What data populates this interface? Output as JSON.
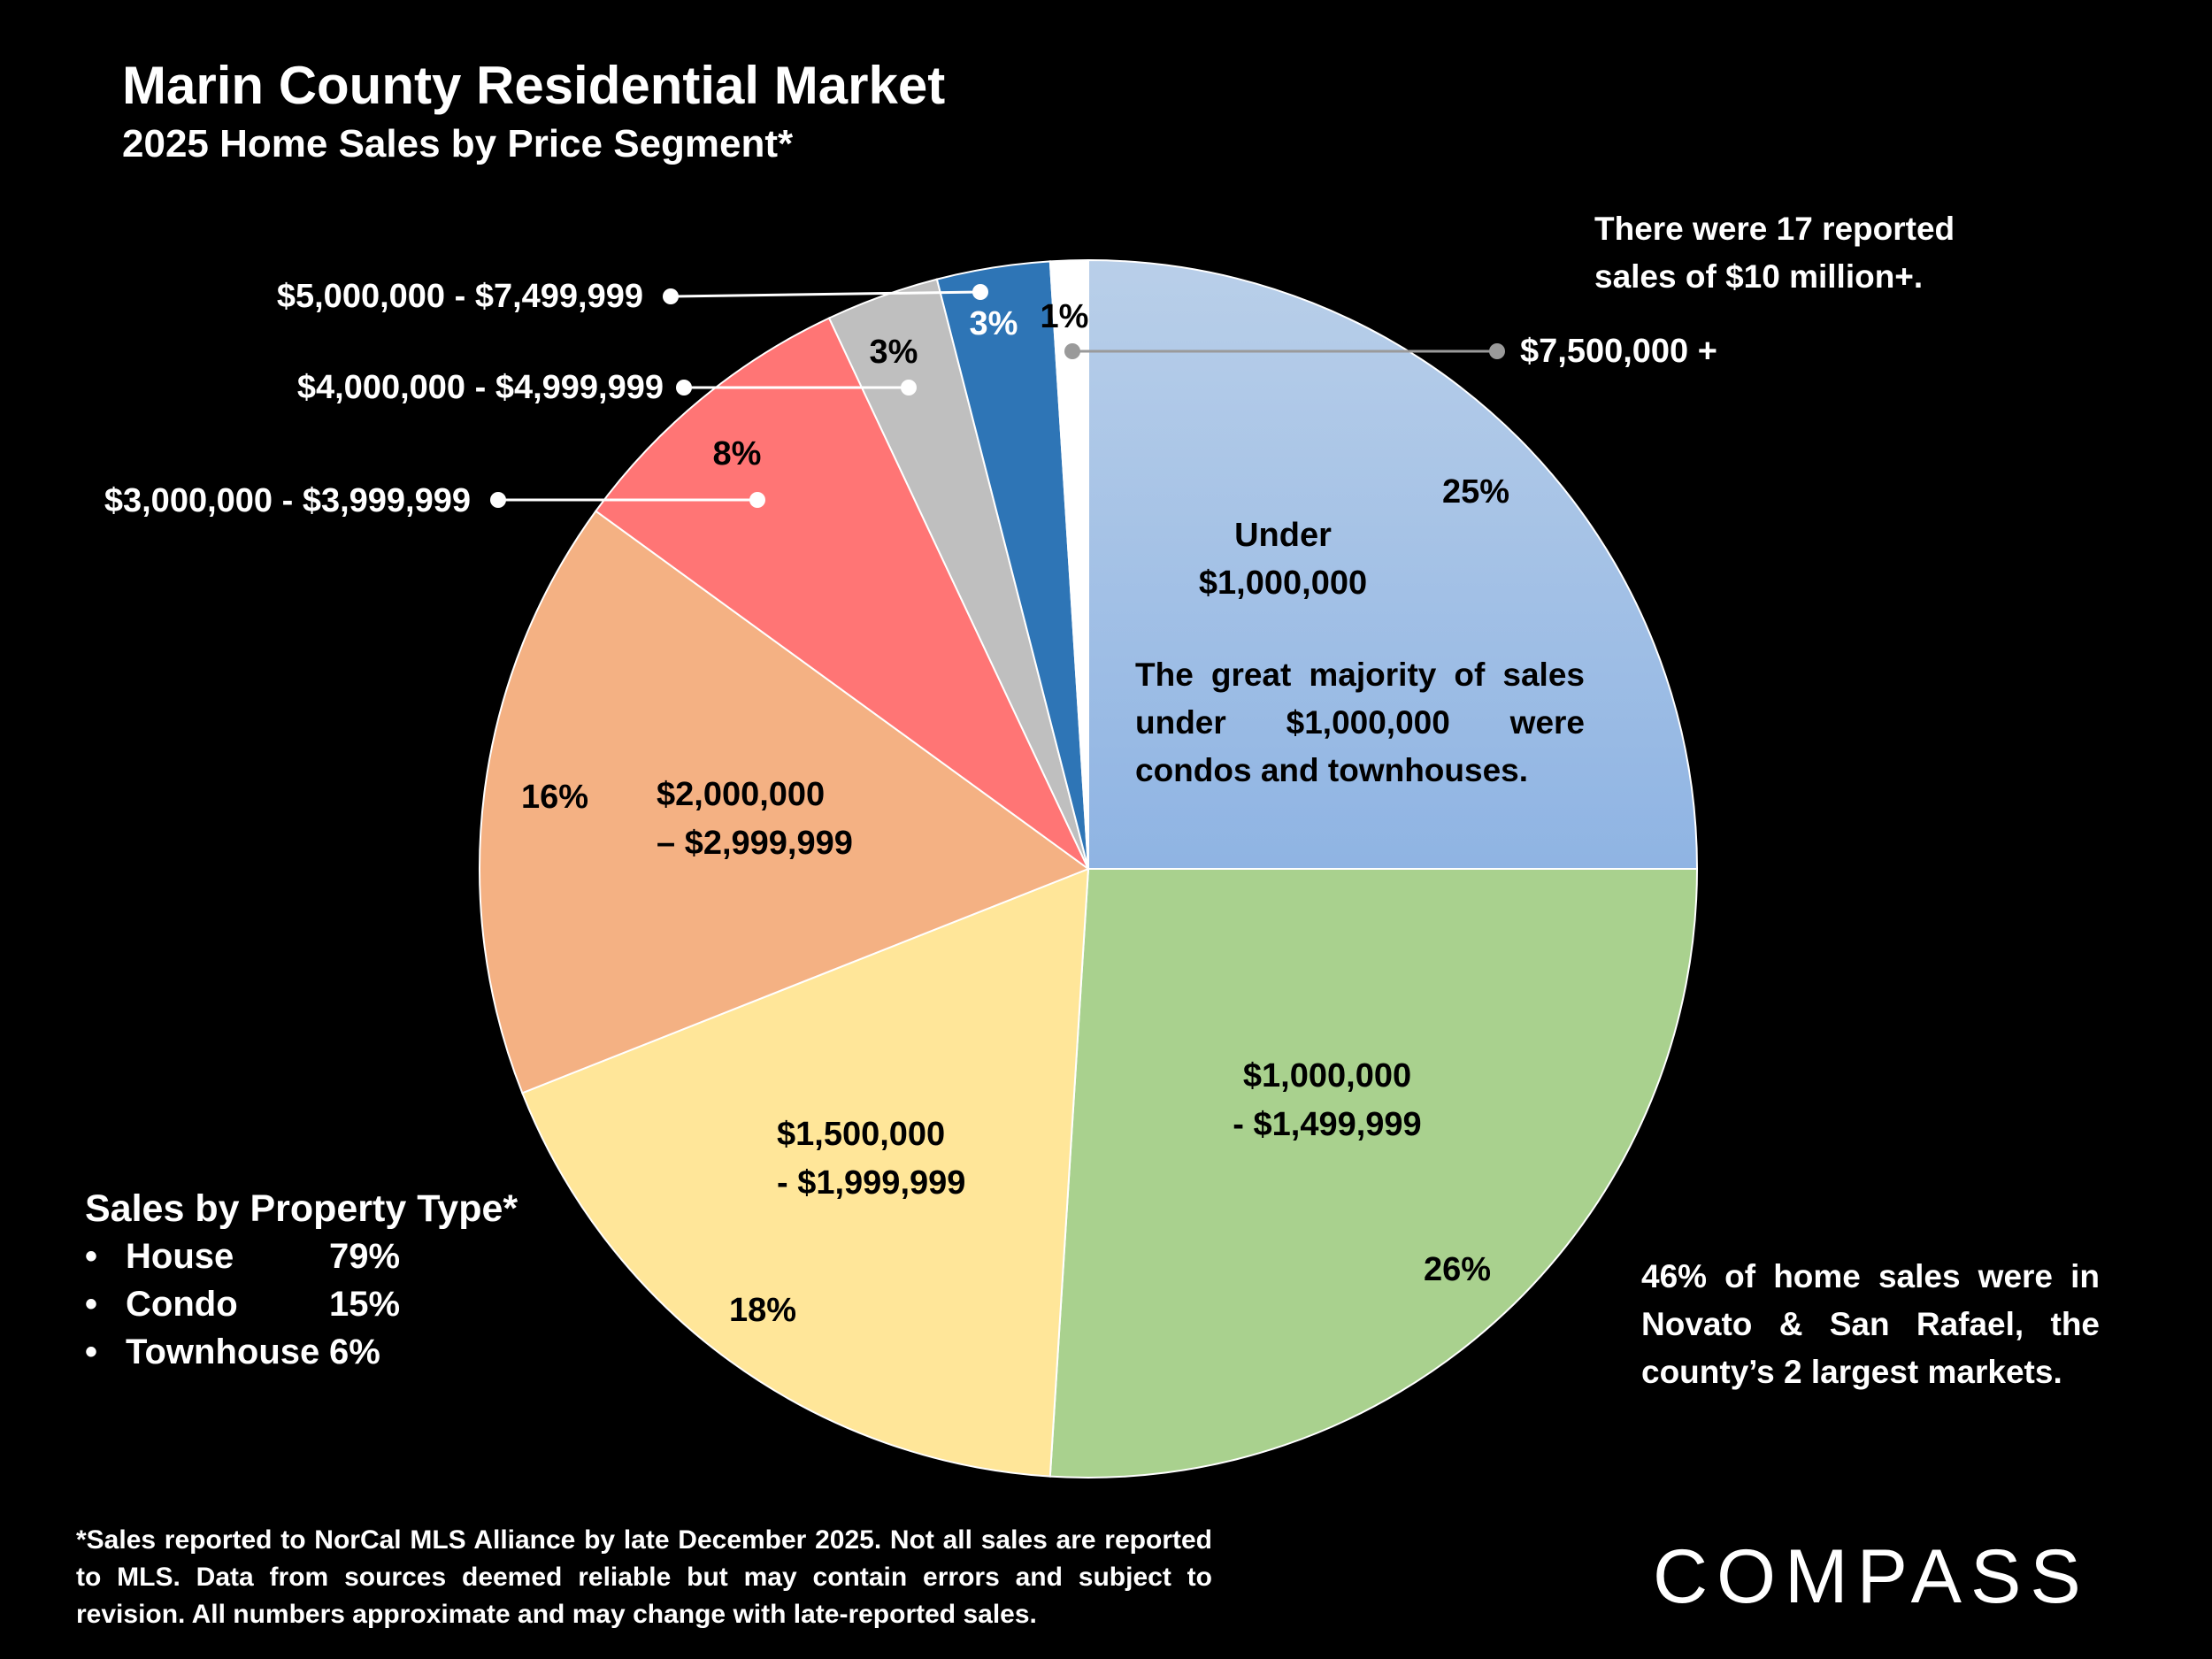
{
  "header": {
    "title": "Marin County Residential Market",
    "subtitle": "2025 Home Sales by Price Segment*"
  },
  "chart_data": {
    "type": "pie",
    "categories": [
      "Under $1,000,000",
      "$1,000,000 - $1,499,999",
      "$1,500,000 - $1,999,999",
      "$2,000,000 – $2,999,999",
      "$3,000,000 - $3,999,999",
      "$4,000,000 - $4,999,999",
      "$5,000,000 - $7,499,999",
      "$7,500,000 +"
    ],
    "values": [
      25,
      26,
      18,
      16,
      8,
      3,
      3,
      1
    ],
    "value_labels": [
      "25%",
      "26%",
      "18%",
      "16%",
      "8%",
      "3%",
      "3%",
      "1%"
    ],
    "colors": [
      "#a6c3e6",
      "#a9d18e",
      "#ffe699",
      "#f4b183",
      "#ff7575",
      "#bfbfbf",
      "#2e75b6",
      "#ffffff"
    ],
    "inner_labels": {
      "under1m": [
        "Under",
        "$1,000,000"
      ],
      "r1_15": [
        "$1,000,000",
        "- $1,499,999"
      ],
      "r15_2": [
        "$1,500,000",
        "- $1,999,999"
      ],
      "r2_3": [
        "$2,000,000",
        "– $2,999,999"
      ]
    },
    "callout_labels": {
      "r3_4": "$3,000,000 - $3,999,999",
      "r4_5": "$4,000,000 - $4,999,999",
      "r5_75": "$5,000,000 - $7,499,999",
      "r75": "$7,500,000 +"
    },
    "legend": "none"
  },
  "notes": {
    "ten_million": "There were 17 reported sales of $10 million+.",
    "majority": "The great majority of sales under $1,000,000 were condos and townhouses.",
    "novato": "46% of home sales were in Novato & San Rafael, the county’s 2 largest markets."
  },
  "property_type": {
    "heading": "Sales by Property Type*",
    "items": [
      {
        "bullet": "•",
        "name": "House",
        "value": "79%"
      },
      {
        "bullet": "•",
        "name": "Condo",
        "value": "15%"
      },
      {
        "bullet": "•",
        "name": "Townhouse",
        "value": "6%"
      }
    ]
  },
  "footnote": "*Sales reported to NorCal MLS Alliance by late December 2025. Not all sales are reported to MLS. Data from sources deemed reliable but may contain errors and subject to revision. All numbers approximate and may change with late-reported sales.",
  "logo": {
    "text": "COMPASS"
  }
}
